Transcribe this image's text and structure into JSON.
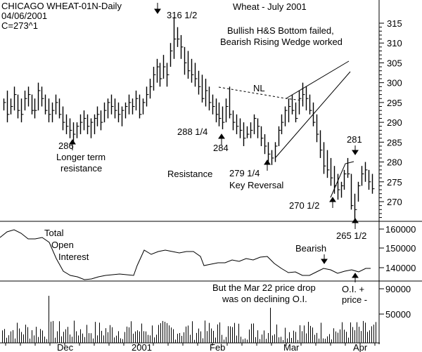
{
  "chart_data": [
    {
      "type": "ohlc",
      "header": [
        "CHICAGO WHEAT-01N-Daily",
        "04/06/2001",
        "C=273^1"
      ],
      "title": "Wheat - July 2001",
      "y_ticks": [
        "315",
        "310",
        "305",
        "300",
        "295",
        "290",
        "285",
        "280",
        "275",
        "270"
      ],
      "ylim": [
        262,
        319
      ],
      "x_ticks": [
        "Dec",
        "2001",
        "Feb",
        "Mar",
        "Apr"
      ],
      "annotations": [
        {
          "text": "316 1/2",
          "arrow": "down"
        },
        {
          "text": "Bullish H&S Bottom failed,"
        },
        {
          "text": "Bearish Rising Wedge worked"
        },
        {
          "text": "NL"
        },
        {
          "text": "288 1/4"
        },
        {
          "text": "284",
          "arrow": "up"
        },
        {
          "text": "286",
          "arrow": "up"
        },
        {
          "text": "Longer term"
        },
        {
          "text": "resistance"
        },
        {
          "text": "Resistance"
        },
        {
          "text": "279 1/4",
          "arrow": "up"
        },
        {
          "text": "Key Reversal"
        },
        {
          "text": "281",
          "arrow": "down"
        },
        {
          "text": "270 1/2",
          "arrow": "up"
        },
        {
          "text": "265 1/2",
          "arrow": "up"
        }
      ],
      "bars": [
        [
          296,
          293,
          295
        ],
        [
          298,
          290,
          292
        ],
        [
          296,
          292,
          294
        ],
        [
          299,
          293,
          297
        ],
        [
          297,
          291,
          293
        ],
        [
          296,
          290,
          292
        ],
        [
          298,
          293,
          296
        ],
        [
          299,
          294,
          297
        ],
        [
          297,
          292,
          293
        ],
        [
          296,
          291,
          293
        ],
        [
          300,
          293,
          298
        ],
        [
          299,
          294,
          296
        ],
        [
          297,
          292,
          293
        ],
        [
          296,
          290,
          292
        ],
        [
          295,
          290,
          293
        ],
        [
          297,
          292,
          295
        ],
        [
          296,
          291,
          292
        ],
        [
          294,
          288,
          290
        ],
        [
          292,
          287,
          289
        ],
        [
          291,
          286,
          288
        ],
        [
          290,
          285,
          287
        ],
        [
          290,
          286,
          289
        ],
        [
          292,
          287,
          290
        ],
        [
          293,
          288,
          291
        ],
        [
          292,
          287,
          289
        ],
        [
          291,
          286,
          290
        ],
        [
          292,
          287,
          291
        ],
        [
          294,
          289,
          292
        ],
        [
          293,
          288,
          290
        ],
        [
          295,
          290,
          293
        ],
        [
          296,
          291,
          295
        ],
        [
          297,
          292,
          294
        ],
        [
          296,
          291,
          293
        ],
        [
          295,
          290,
          292
        ],
        [
          294,
          289,
          293
        ],
        [
          295,
          291,
          294
        ],
        [
          297,
          292,
          295
        ],
        [
          296,
          292,
          294
        ],
        [
          298,
          293,
          296
        ],
        [
          297,
          291,
          292
        ],
        [
          296,
          292,
          295
        ],
        [
          299,
          294,
          297
        ],
        [
          301,
          296,
          299
        ],
        [
          304,
          298,
          302
        ],
        [
          306,
          300,
          304
        ],
        [
          305,
          299,
          301
        ],
        [
          307,
          301,
          304
        ],
        [
          305,
          299,
          302
        ],
        [
          310,
          304,
          308
        ],
        [
          316.5,
          306,
          311
        ],
        [
          314,
          309,
          311
        ],
        [
          312,
          306,
          309
        ],
        [
          309,
          302,
          305
        ],
        [
          308,
          301,
          303
        ],
        [
          306,
          300,
          302
        ],
        [
          305,
          299,
          301
        ],
        [
          303,
          297,
          299
        ],
        [
          302,
          295,
          296
        ],
        [
          301,
          294,
          298
        ],
        [
          299,
          293,
          295
        ],
        [
          297,
          292,
          294
        ],
        [
          296,
          290,
          292
        ],
        [
          295,
          289,
          291
        ],
        [
          294,
          288.25,
          290
        ],
        [
          296,
          290,
          294
        ],
        [
          299,
          291,
          292
        ],
        [
          293,
          288,
          290
        ],
        [
          292,
          287,
          289
        ],
        [
          291,
          286,
          288
        ],
        [
          290,
          284,
          286
        ],
        [
          289,
          286,
          287
        ],
        [
          290,
          286,
          288
        ],
        [
          292,
          287,
          291
        ],
        [
          291,
          286,
          289
        ],
        [
          289,
          284,
          286
        ],
        [
          287,
          282,
          284
        ],
        [
          285,
          280,
          282
        ],
        [
          283,
          279.25,
          281
        ],
        [
          285,
          280,
          284
        ],
        [
          289,
          284,
          288
        ],
        [
          292,
          287,
          290
        ],
        [
          294,
          289,
          293
        ],
        [
          296,
          290,
          294
        ],
        [
          297,
          292,
          293
        ],
        [
          295,
          290,
          291
        ],
        [
          298,
          292,
          296
        ],
        [
          300,
          294,
          297
        ],
        [
          299,
          293,
          296
        ],
        [
          297,
          292,
          293
        ],
        [
          295,
          289,
          290
        ],
        [
          292,
          285,
          287
        ],
        [
          288,
          281,
          283
        ],
        [
          285,
          277,
          279
        ],
        [
          283,
          276,
          278
        ],
        [
          281,
          274,
          276
        ],
        [
          279,
          272,
          274
        ],
        [
          277,
          270.5,
          273
        ],
        [
          275,
          271,
          274
        ],
        [
          278,
          273,
          277
        ],
        [
          281,
          276,
          277
        ],
        [
          277,
          268,
          269
        ],
        [
          272,
          265.5,
          268
        ],
        [
          275,
          270,
          274
        ],
        [
          279,
          274,
          277
        ],
        [
          280,
          275,
          278
        ],
        [
          278,
          273,
          275
        ],
        [
          277,
          272,
          273.25
        ]
      ],
      "open_interest_axis": [
        "160000",
        "150000",
        "140000"
      ],
      "open_interest_label": [
        "Total",
        "Open",
        "Interest"
      ],
      "open_interest_annotations": [
        "Bearish",
        "But the Mar 22 price drop",
        "was on declining O.I.",
        "O.I. +",
        "price -"
      ],
      "volume_axis": [
        "90000",
        "50000"
      ]
    }
  ]
}
